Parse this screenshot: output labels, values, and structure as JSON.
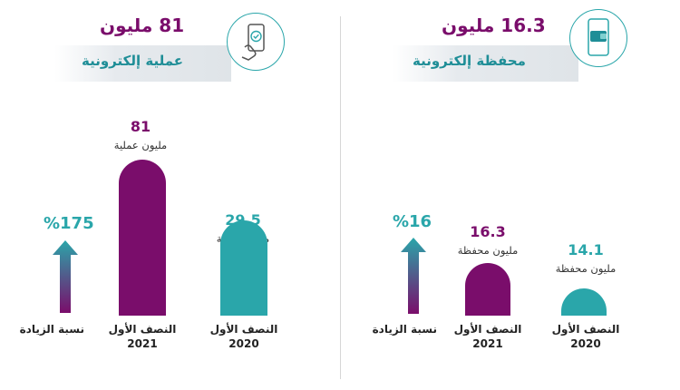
{
  "colors": {
    "purple": "#7a0d6b",
    "teal": "#2aa6aa",
    "teal_dark": "#1f8e97"
  },
  "left": {
    "header_big": "81 مليون",
    "header_sub": "عملية إلكترونية",
    "icon": "phone-checkmark-hand-icon",
    "increase_label": "نسبة الزيادة",
    "increase_value": "%175",
    "bars": [
      {
        "value": "81",
        "unit": "مليون عملية",
        "category": "النصف الأول 2021",
        "cat_line1": "النصف الأول",
        "cat_line2": "2021"
      },
      {
        "value": "29.5",
        "unit": "مليون عملية",
        "category": "النصف الأول 2020",
        "cat_line1": "النصف الأول",
        "cat_line2": "2020"
      }
    ]
  },
  "right": {
    "header_big": "16.3 مليون",
    "header_sub": "محفظة إلكترونية",
    "icon": "phone-wallet-icon",
    "increase_label": "نسبة الزيادة",
    "increase_value": "%16",
    "bars": [
      {
        "value": "16.3",
        "unit": "مليون محفظة",
        "category": "النصف الأول 2021",
        "cat_line1": "النصف الأول",
        "cat_line2": "2021"
      },
      {
        "value": "14.1",
        "unit": "مليون محفظة",
        "category": "النصف الأول 2020",
        "cat_line1": "النصف الأول",
        "cat_line2": "2020"
      }
    ]
  },
  "chart_data": [
    {
      "type": "bar",
      "categories": [
        "النصف الأول 2021",
        "النصف الأول 2020"
      ],
      "values": [
        81,
        29.5
      ],
      "title": "81 مليون عملية إلكترونية",
      "ylabel": "مليون عملية",
      "increase_percent": 175
    },
    {
      "type": "bar",
      "categories": [
        "النصف الأول 2021",
        "النصف الأول 2020"
      ],
      "values": [
        16.3,
        14.1
      ],
      "title": "16.3 مليون محفظة إلكترونية",
      "ylabel": "مليون محفظة",
      "increase_percent": 16
    }
  ]
}
